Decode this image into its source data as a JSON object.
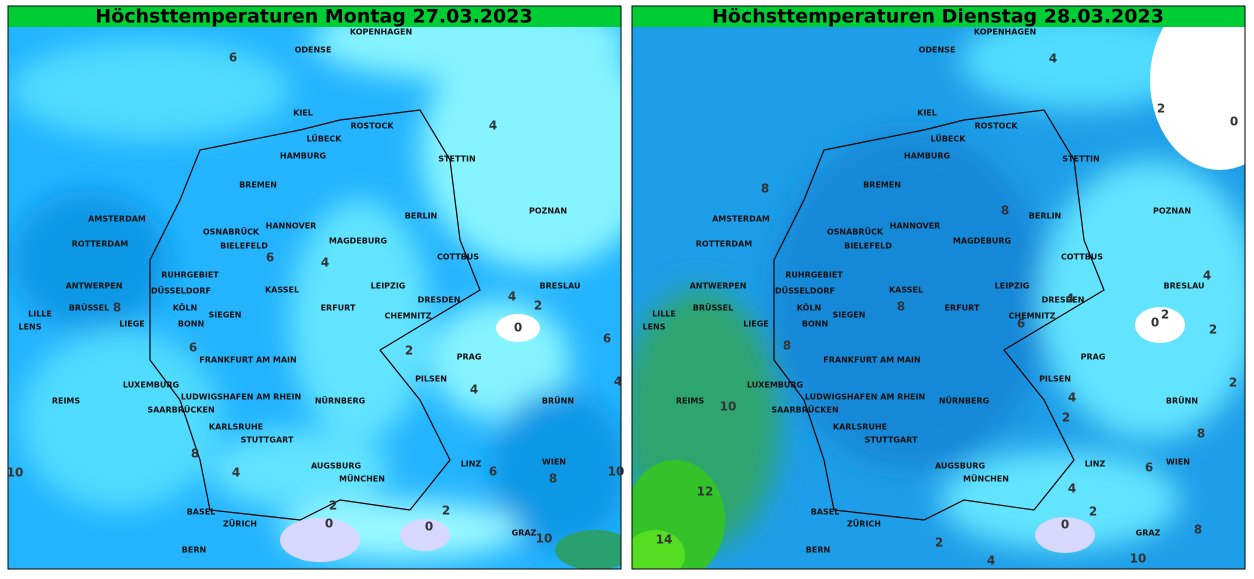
{
  "panels": [
    {
      "title": "Höchsttemperaturen Montag 27.03.2023",
      "cities": [
        "KOPENHAGEN",
        "ODENSE",
        "KIEL",
        "LÜBECK",
        "ROSTOCK",
        "HAMBURG",
        "STETTIN",
        "BREMEN",
        "AMSTERDAM",
        "HANNOVER",
        "OSNABRÜCK",
        "BERLIN",
        "BIELEFELD",
        "MAGDEBURG",
        "ROTTERDAM",
        "COTTBUS",
        "POZNAN",
        "RUHRGEBIET",
        "ANTWERPEN",
        "DÜSSELDORF",
        "KASSEL",
        "LEIPZIG",
        "BRESLAU",
        "DRESDEN",
        "LILLE",
        "BRÜSSEL",
        "KÖLN",
        "ERFURT",
        "SIEGEN",
        "CHEMNITZ",
        "LENS",
        "LIEGE",
        "BONN",
        "FRANKFURT AM MAIN",
        "PRAG",
        "LUXEMBURG",
        "PILSEN",
        "LUDWIGSHAFEN AM RHEIN",
        "REIMS",
        "NÜRNBERG",
        "SAARBRÜCKEN",
        "BRÜNN",
        "KARLSRUHE",
        "STUTTGART",
        "LINZ",
        "WIEN",
        "AUGSBURG",
        "MÜNCHEN",
        "BASEL",
        "ZÜRICH",
        "GRAZ",
        "BERN"
      ],
      "contour_labels": [
        6,
        4,
        6,
        4,
        8,
        4,
        2,
        0,
        6,
        6,
        2,
        4,
        4,
        10,
        8,
        4,
        6,
        8,
        10,
        2,
        0,
        2,
        0,
        10
      ]
    },
    {
      "title": "Höchsttemperaturen Dienstag 28.03.2023",
      "cities": [
        "KOPENHAGEN",
        "ODENSE",
        "KIEL",
        "LÜBECK",
        "ROSTOCK",
        "HAMBURG",
        "STETTIN",
        "BREMEN",
        "AMSTERDAM",
        "HANNOVER",
        "OSNABRÜCK",
        "BERLIN",
        "BIELEFELD",
        "MAGDEBURG",
        "ROTTERDAM",
        "COTTBUS",
        "POZNAN",
        "RUHRGEBIET",
        "ANTWERPEN",
        "DÜSSELDORF",
        "KASSEL",
        "LEIPZIG",
        "BRESLAU",
        "DRESDEN",
        "LILLE",
        "BRÜSSEL",
        "KÖLN",
        "ERFURT",
        "SIEGEN",
        "CHEMNITZ",
        "LENS",
        "LIEGE",
        "BONN",
        "FRANKFURT AM MAIN",
        "PRAG",
        "LUXEMBURG",
        "PILSEN",
        "LUDWIGSHAFEN AM RHEIN",
        "REIMS",
        "NÜRNBERG",
        "SAARBRÜCKEN",
        "BRÜNN",
        "KARLSRUHE",
        "STUTTGART",
        "LINZ",
        "WIEN",
        "AUGSBURG",
        "MÜNCHEN",
        "BASEL",
        "ZÜRICH",
        "GRAZ",
        "BERN"
      ],
      "contour_labels": [
        4,
        2,
        0,
        8,
        8,
        4,
        4,
        2,
        0,
        2,
        6,
        8,
        8,
        10,
        2,
        4,
        2,
        8,
        6,
        12,
        4,
        2,
        0,
        8,
        14,
        2,
        4,
        10
      ]
    }
  ]
}
